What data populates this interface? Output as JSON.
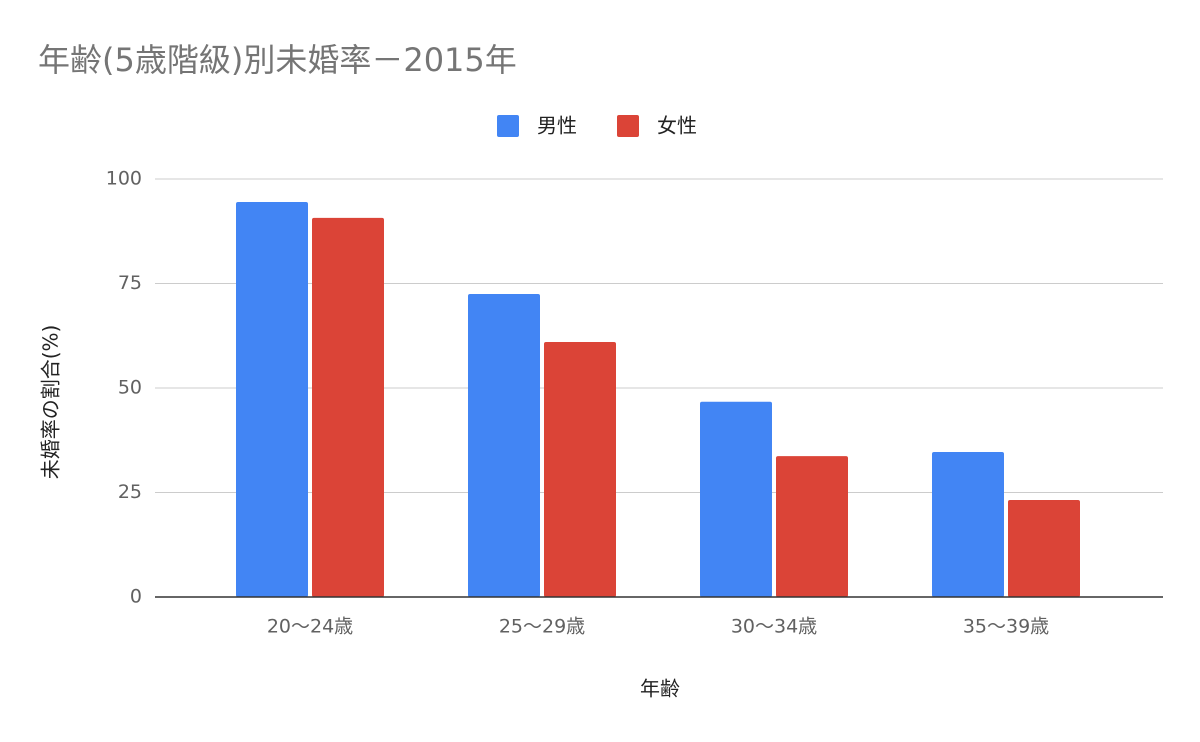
{
  "chart_data": {
    "type": "bar",
    "title": "年齢(5歳階級)別未婚率－2015年",
    "x_label": "年齢",
    "y_label": "未婚率の割合(%)",
    "categories": [
      "20〜24歳",
      "25〜29歳",
      "30〜34歳",
      "35〜39歳"
    ],
    "series": [
      {
        "name": "男性",
        "color": "#4285f4",
        "values": [
          94.5,
          72.5,
          46.7,
          34.7
        ]
      },
      {
        "name": "女性",
        "color": "#db4437",
        "values": [
          90.7,
          61,
          33.7,
          23.2
        ]
      }
    ],
    "ylim": [
      0,
      100
    ],
    "yticks": [
      0,
      25,
      50,
      75,
      100
    ],
    "grid": true,
    "legend": "top"
  }
}
